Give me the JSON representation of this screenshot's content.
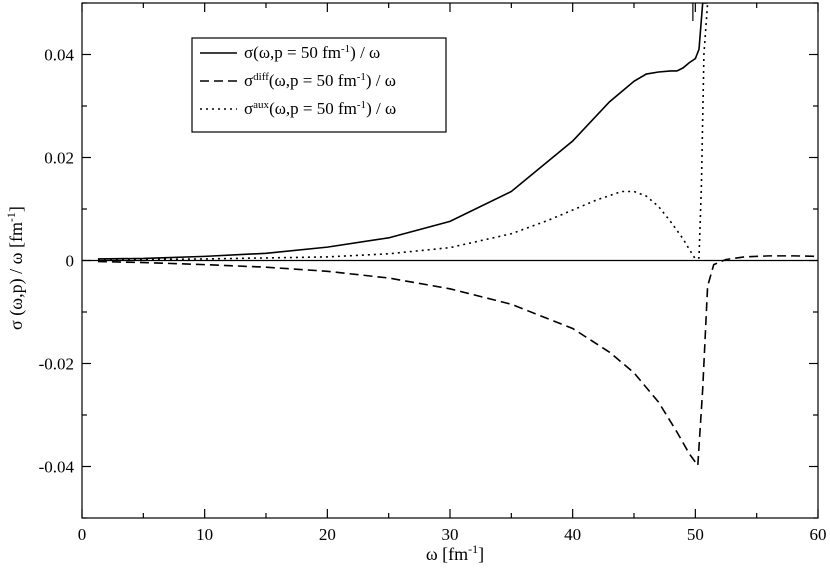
{
  "chart_data": {
    "type": "line",
    "xlabel": {
      "base": "ω [fm",
      "sup": "-1",
      "tail": "]"
    },
    "ylabel": {
      "base": "σ (ω,p) / ω  [fm",
      "sup": "-1",
      "tail": "]"
    },
    "xlim": [
      0,
      60
    ],
    "ylim": [
      -0.05,
      0.05
    ],
    "xticks": [
      0,
      10,
      20,
      30,
      40,
      50,
      60
    ],
    "yticks": [
      -0.04,
      -0.02,
      0,
      0.02,
      0.04
    ],
    "xtick_labels": [
      "0",
      "10",
      "20",
      "30",
      "40",
      "50",
      "60"
    ],
    "ytick_labels": [
      "-0.04",
      "-0.02",
      "0",
      "0.02",
      "0.04"
    ],
    "grid": false,
    "zero_line": true,
    "legend_position": "top-left",
    "series": [
      {
        "legend": {
          "pre": "σ",
          "sup": "",
          "post": "(ω,p = 50 fm",
          "sup2": "-1",
          "post2": ") / ω"
        },
        "style": "solid",
        "x": [
          1.3,
          5,
          10,
          15,
          20,
          25,
          30,
          35,
          40,
          43,
          45,
          46,
          47,
          48,
          48.5,
          49,
          49.5,
          50,
          50.3,
          50.6,
          50.6,
          50.6,
          50.8,
          51
        ],
        "y": [
          0.0003,
          0.0004,
          0.0008,
          0.0014,
          0.0026,
          0.0044,
          0.0076,
          0.0134,
          0.0232,
          0.0308,
          0.0348,
          0.0362,
          0.0366,
          0.0368,
          0.0368,
          0.0374,
          0.0384,
          0.0392,
          0.041,
          0.05,
          0.05,
          0.05,
          0.05,
          0.05
        ]
      },
      {
        "legend": {
          "pre": "σ",
          "sup": "diff",
          "post": "(ω,p = 50 fm",
          "sup2": "-1",
          "post2": ") / ω"
        },
        "style": "dashed",
        "x": [
          1.3,
          5,
          10,
          15,
          20,
          25,
          30,
          35,
          40,
          43,
          45,
          47,
          48.5,
          49.5,
          50.2,
          50.6,
          51,
          51.5,
          52.5,
          54,
          56,
          58,
          60
        ],
        "y": [
          -0.0002,
          -0.0004,
          -0.0008,
          -0.0013,
          -0.0021,
          -0.0034,
          -0.0055,
          -0.0085,
          -0.0132,
          -0.0178,
          -0.0218,
          -0.0275,
          -0.0333,
          -0.0375,
          -0.0398,
          -0.025,
          -0.005,
          -0.0008,
          0.0002,
          0.0007,
          0.0009,
          0.0009,
          0.0008
        ]
      },
      {
        "legend": {
          "pre": "σ",
          "sup": "aux",
          "post": "(ω,p = 50 fm",
          "sup2": "-1",
          "post2": ") / ω"
        },
        "style": "dotted",
        "x": [
          1.3,
          5,
          10,
          15,
          20,
          25,
          30,
          35,
          38,
          40,
          42,
          44,
          45,
          46,
          47,
          48,
          49,
          49.5,
          50,
          50.3,
          50.5,
          50.7,
          51
        ],
        "y": [
          0.0001,
          0.0002,
          0.0003,
          0.0005,
          0.0007,
          0.0013,
          0.0025,
          0.0052,
          0.0078,
          0.0098,
          0.0118,
          0.0134,
          0.0134,
          0.0125,
          0.0105,
          0.0075,
          0.0042,
          0.0022,
          0.0003,
          0.0005,
          0.015,
          0.04,
          0.05
        ]
      }
    ]
  }
}
